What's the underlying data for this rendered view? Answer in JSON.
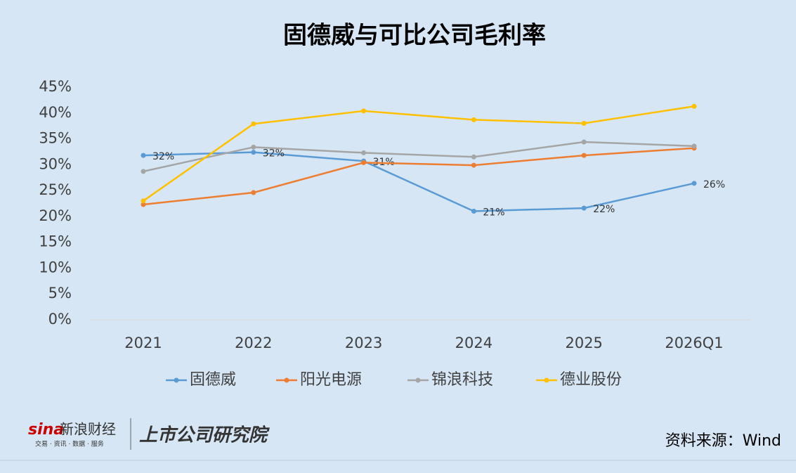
{
  "chart_data": {
    "type": "line",
    "title": "固德威与可比公司毛利率",
    "categories": [
      "2021",
      "2022",
      "2023",
      "2024",
      "2025",
      "2026Q1"
    ],
    "series": [
      {
        "name": "固德威",
        "color": "#5b9bd5",
        "values": [
          31.8,
          32.4,
          30.7,
          21.0,
          21.6,
          26.4
        ],
        "value_labels": [
          "32%",
          "32%",
          "31%",
          "21%",
          "22%",
          "26%"
        ]
      },
      {
        "name": "阳光电源",
        "color": "#ed7d31",
        "values": [
          22.3,
          24.6,
          30.4,
          29.9,
          31.8,
          33.2
        ]
      },
      {
        "name": "锦浪科技",
        "color": "#a5a5a5",
        "values": [
          28.7,
          33.4,
          32.3,
          31.5,
          34.4,
          33.6
        ]
      },
      {
        "name": "德业股份",
        "color": "#ffc000",
        "values": [
          23.0,
          37.9,
          40.4,
          38.7,
          38.0,
          41.3
        ]
      }
    ],
    "ylim": [
      0,
      45
    ],
    "yticks": [
      {
        "value": 0,
        "label": "0%"
      },
      {
        "value": 5,
        "label": "5%"
      },
      {
        "value": 10,
        "label": "10%"
      },
      {
        "value": 15,
        "label": "15%"
      },
      {
        "value": 20,
        "label": "20%"
      },
      {
        "value": 25,
        "label": "25%"
      },
      {
        "value": 30,
        "label": "30%"
      },
      {
        "value": 35,
        "label": "35%"
      },
      {
        "value": 40,
        "label": "40%"
      },
      {
        "value": 45,
        "label": "45%"
      }
    ],
    "grid": false,
    "source": "资料来源：Wind",
    "logos": [
      "sina",
      "新浪财经",
      "交易 · 资讯 · 数据 · 服务",
      "上市公司研究院"
    ]
  }
}
